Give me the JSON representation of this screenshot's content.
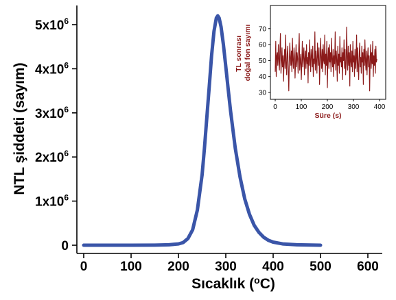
{
  "chart_data": [
    {
      "type": "line",
      "xlabel": "Sıcaklık (°C)",
      "xlabel_text": "Sıcaklık (",
      "xlabel_sup": "o",
      "xlabel_unit": "C)",
      "ylabel": "NTL şiddeti (sayım)",
      "xlim": [
        0,
        650
      ],
      "ylim": [
        -150000,
        5600000
      ],
      "x_ticks": [
        "0",
        "100",
        "200",
        "300",
        "400",
        "500",
        "600"
      ],
      "x_tick_values": [
        0,
        100,
        200,
        300,
        400,
        500,
        600
      ],
      "y_ticks": [
        {
          "value": 0,
          "mantissa": "0",
          "exp": ""
        },
        {
          "value": 1000000,
          "mantissa": "1x10",
          "exp": "6"
        },
        {
          "value": 2000000,
          "mantissa": "2x10",
          "exp": "6"
        },
        {
          "value": 3000000,
          "mantissa": "3x10",
          "exp": "6"
        },
        {
          "value": 4000000,
          "mantissa": "4x10",
          "exp": "6"
        },
        {
          "value": 5000000,
          "mantissa": "5x10",
          "exp": "6"
        }
      ],
      "series_color": "#3a55a8",
      "series": [
        {
          "x": [
            0,
            100,
            150,
            180,
            200,
            210,
            220,
            230,
            240,
            250,
            255,
            260,
            265,
            270,
            275,
            280,
            283,
            286,
            290,
            295,
            300,
            305,
            310,
            320,
            330,
            340,
            350,
            360,
            370,
            380,
            390,
            400,
            420,
            450,
            500
          ],
          "values": [
            0,
            0,
            2000,
            10000,
            30000,
            60000,
            150000,
            350000,
            800000,
            1600000,
            2200000,
            2900000,
            3600000,
            4300000,
            4850000,
            5150000,
            5200000,
            5150000,
            4950000,
            4550000,
            4050000,
            3550000,
            3050000,
            2200000,
            1550000,
            1050000,
            700000,
            450000,
            290000,
            180000,
            110000,
            70000,
            30000,
            10000,
            0
          ]
        }
      ],
      "grid": false
    },
    {
      "type": "line",
      "xlabel": "Süre (s)",
      "ylabel": "TL sonrası doğal fon sayımı",
      "ylabel_lines": [
        "TL sonrası",
        "doğal fon sayımı"
      ],
      "xlim": [
        -15,
        410
      ],
      "ylim": [
        27,
        73
      ],
      "x_ticks": [
        "0",
        "100",
        "200",
        "300",
        "400"
      ],
      "x_tick_values": [
        0,
        100,
        200,
        300,
        400
      ],
      "y_ticks": [
        "30",
        "40",
        "50",
        "60",
        "70"
      ],
      "y_tick_values": [
        30,
        40,
        50,
        60,
        70
      ],
      "series_color": "#8b1a1a",
      "series": [
        {
          "x_start": 0,
          "x_step": 2,
          "values": [
            43,
            62,
            40,
            53,
            55,
            47,
            60,
            51,
            44,
            56,
            67,
            42,
            49,
            58,
            46,
            53,
            37,
            50,
            57,
            45,
            66,
            48,
            41,
            54,
            59,
            44,
            31,
            49,
            61,
            52,
            47,
            56,
            43,
            64,
            50,
            45,
            58,
            53,
            39,
            48,
            60,
            46,
            55,
            51,
            42,
            57,
            67,
            44,
            50,
            54,
            38,
            49,
            62,
            46,
            53,
            58,
            41,
            51,
            56,
            45,
            60,
            48,
            52,
            36,
            55,
            47,
            63,
            50,
            43,
            57,
            53,
            46,
            59,
            40,
            51,
            48,
            68,
            44,
            56,
            50,
            42,
            61,
            53,
            47,
            58,
            35,
            49,
            64,
            52,
            45,
            57,
            43,
            60,
            50,
            48,
            66,
            41,
            54,
            47,
            62,
            33,
            52,
            58,
            45,
            60,
            49,
            55,
            43,
            64,
            51,
            46,
            57,
            40,
            53,
            48,
            68,
            44,
            56,
            50,
            37,
            59,
            47,
            54,
            42,
            65,
            49,
            52,
            46,
            58,
            38,
            55,
            50,
            63,
            45,
            57,
            41,
            48,
            71,
            52,
            44,
            59,
            47,
            55,
            34,
            60,
            50,
            46,
            56,
            43,
            62,
            49,
            53,
            40,
            57,
            45,
            51,
            66,
            43,
            58,
            48,
            38,
            54,
            61,
            46,
            52,
            42,
            59,
            49,
            55,
            35,
            57,
            47,
            63,
            50,
            44,
            56,
            41,
            52,
            58,
            46,
            53,
            31,
            50,
            60,
            45,
            55,
            48,
            62,
            40,
            53,
            47,
            57,
            42,
            59,
            49,
            51
          ]
        }
      ],
      "grid": false
    }
  ]
}
